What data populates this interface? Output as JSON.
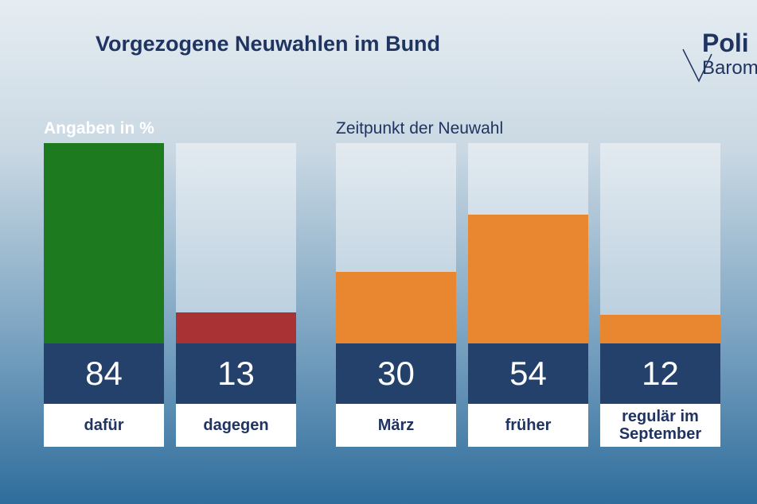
{
  "title": "Vorgezogene Neuwahlen im Bund",
  "logo": {
    "line1": "Poli",
    "line2": "Barom"
  },
  "chart_data": [
    {
      "type": "bar",
      "title": "Angaben in %",
      "categories": [
        "dafür",
        "dagegen"
      ],
      "values": [
        84,
        13
      ],
      "colors": [
        "#1e7a1e",
        "#a83234"
      ],
      "ylim": [
        0,
        84
      ]
    },
    {
      "type": "bar",
      "title": "Zeitpunkt der Neuwahl",
      "categories": [
        "März",
        "früher",
        "regulär im September"
      ],
      "values": [
        30,
        54,
        12
      ],
      "color": "#e8872f",
      "ylim": [
        0,
        84
      ]
    }
  ]
}
